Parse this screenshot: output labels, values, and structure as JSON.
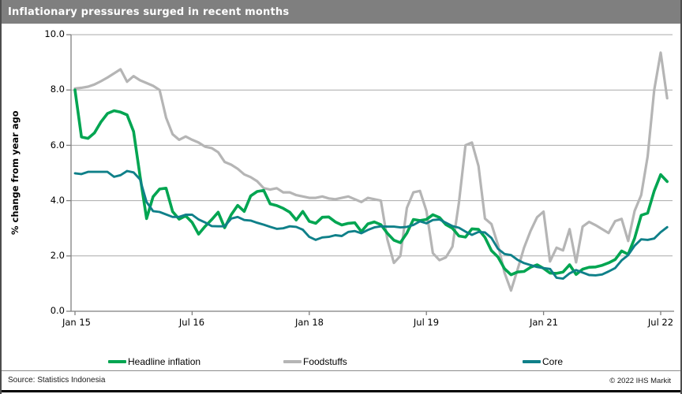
{
  "title": "Inflationary pressures surged in recent months",
  "axes": {
    "y_title": "% change from year ago",
    "y_ticks": [
      "10.0",
      "8.0",
      "6.0",
      "4.0",
      "2.0",
      "0.0"
    ],
    "x_ticks": [
      "Jan 15",
      "Jul 16",
      "Jan 18",
      "Jul 19",
      "Jan 21",
      "Jul 22"
    ]
  },
  "legend": [
    {
      "label": "Headline inflation",
      "color": "#00a551"
    },
    {
      "label": "Foodstuffs",
      "color": "#b5b5b5"
    },
    {
      "label": "Core",
      "color": "#0f8089"
    }
  ],
  "footer": {
    "source": "Source: Statistics Indonesia",
    "copyright": "© 2022  IHS Markit"
  },
  "colors": {
    "title_bar": "#7f7f7f",
    "gridline": "#aaaaaa",
    "axis": "#7f7f7f",
    "headline": "#00a551",
    "foodstuffs": "#b5b5b5",
    "core": "#0f8089"
  },
  "chart_data": {
    "type": "line",
    "title": "Inflationary pressures surged in recent months",
    "ylabel": "% change from year ago",
    "ylim": [
      0,
      10
    ],
    "grid": "horizontal",
    "legend_position": "bottom",
    "frequency": "monthly",
    "x_start": "2015-01",
    "x_end": "2022-08",
    "x_tick_labels": [
      "Jan 15",
      "Jul 16",
      "Jan 18",
      "Jul 19",
      "Jan 21",
      "Jul 22"
    ],
    "x_tick_month_indices": [
      0,
      18,
      36,
      54,
      72,
      90
    ],
    "draw_order": [
      "Foodstuffs",
      "Headline inflation",
      "Core"
    ],
    "series": [
      {
        "name": "Headline inflation",
        "color": "#00a551",
        "stroke_width": 3.6,
        "values": [
          8.0,
          6.3,
          6.25,
          6.45,
          6.85,
          7.15,
          7.25,
          7.2,
          7.1,
          6.5,
          4.89,
          3.35,
          4.14,
          4.42,
          4.45,
          3.6,
          3.33,
          3.45,
          3.21,
          2.79,
          3.07,
          3.31,
          3.58,
          3.02,
          3.49,
          3.83,
          3.61,
          4.17,
          4.33,
          4.37,
          3.88,
          3.82,
          3.72,
          3.58,
          3.3,
          3.61,
          3.25,
          3.18,
          3.4,
          3.41,
          3.23,
          3.12,
          3.18,
          3.2,
          2.88,
          3.16,
          3.23,
          3.13,
          2.82,
          2.57,
          2.48,
          2.83,
          3.32,
          3.28,
          3.32,
          3.49,
          3.39,
          3.13,
          3.0,
          2.72,
          2.68,
          2.98,
          2.96,
          2.67,
          2.19,
          1.96,
          1.54,
          1.32,
          1.42,
          1.44,
          1.59,
          1.68,
          1.55,
          1.38,
          1.37,
          1.42,
          1.68,
          1.33,
          1.52,
          1.59,
          1.6,
          1.66,
          1.75,
          1.87,
          2.18,
          2.06,
          2.64,
          3.47,
          3.55,
          4.35,
          4.94,
          4.69
        ]
      },
      {
        "name": "Foodstuffs",
        "color": "#b5b5b5",
        "stroke_width": 3.2,
        "values": [
          8.05,
          8.08,
          8.12,
          8.2,
          8.32,
          8.45,
          8.6,
          8.75,
          8.3,
          8.5,
          8.35,
          8.25,
          8.15,
          8.0,
          7.0,
          6.4,
          6.2,
          6.32,
          6.2,
          6.1,
          5.95,
          5.9,
          5.75,
          5.4,
          5.3,
          5.15,
          4.95,
          4.85,
          4.7,
          4.45,
          4.4,
          4.45,
          4.3,
          4.3,
          4.2,
          4.15,
          4.1,
          4.1,
          4.15,
          4.08,
          4.05,
          4.1,
          4.15,
          4.05,
          3.95,
          4.1,
          4.05,
          4.0,
          2.6,
          1.75,
          2.0,
          3.74,
          4.3,
          4.35,
          3.63,
          2.1,
          1.85,
          1.95,
          2.34,
          3.93,
          6.0,
          6.1,
          5.25,
          3.35,
          3.15,
          2.4,
          1.4,
          0.75,
          1.5,
          2.3,
          2.9,
          3.4,
          3.6,
          1.8,
          2.3,
          2.2,
          2.97,
          1.77,
          3.06,
          3.23,
          3.11,
          2.97,
          2.83,
          3.26,
          3.34,
          2.54,
          3.63,
          4.2,
          5.6,
          8.0,
          9.35,
          7.7
        ]
      },
      {
        "name": "Core",
        "color": "#0f8089",
        "stroke_width": 2.9,
        "values": [
          4.99,
          4.96,
          5.04,
          5.04,
          5.04,
          5.04,
          4.86,
          4.92,
          5.07,
          5.02,
          4.77,
          3.95,
          3.62,
          3.59,
          3.5,
          3.41,
          3.41,
          3.49,
          3.49,
          3.32,
          3.21,
          3.08,
          3.07,
          3.07,
          3.35,
          3.41,
          3.3,
          3.28,
          3.2,
          3.13,
          3.05,
          2.98,
          3.0,
          3.07,
          3.05,
          2.95,
          2.69,
          2.58,
          2.67,
          2.69,
          2.75,
          2.72,
          2.87,
          2.9,
          2.82,
          2.94,
          3.03,
          3.07,
          3.06,
          3.06,
          3.03,
          3.05,
          3.12,
          3.25,
          3.18,
          3.3,
          3.32,
          3.2,
          3.08,
          3.02,
          2.88,
          2.76,
          2.87,
          2.85,
          2.65,
          2.26,
          2.07,
          2.03,
          1.86,
          1.74,
          1.67,
          1.6,
          1.56,
          1.53,
          1.21,
          1.18,
          1.37,
          1.49,
          1.4,
          1.31,
          1.3,
          1.33,
          1.44,
          1.56,
          1.84,
          2.03,
          2.37,
          2.6,
          2.58,
          2.63,
          2.86,
          3.04
        ]
      }
    ]
  }
}
